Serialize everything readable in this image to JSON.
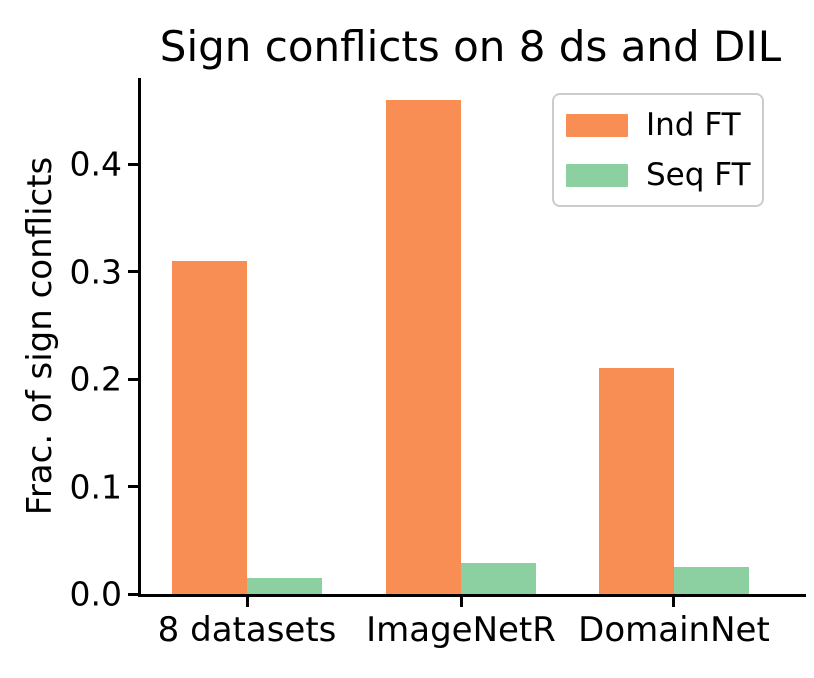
{
  "title": "Sign conflicts on 8 ds and DIL",
  "chart_data": {
    "type": "bar",
    "title": "Sign conflicts on 8 ds and DIL",
    "xlabel": "",
    "ylabel": "Frac. of sign conflicts",
    "categories": [
      "8 datasets",
      "ImageNetR",
      "DomainNet"
    ],
    "series": [
      {
        "name": "Ind FT",
        "color": "#f98e55",
        "values": [
          0.31,
          0.46,
          0.21
        ]
      },
      {
        "name": "Seq FT",
        "color": "#8cd0a2",
        "values": [
          0.015,
          0.029,
          0.025
        ]
      }
    ],
    "ylim": [
      0,
      0.48
    ],
    "yticks": [
      0.0,
      0.1,
      0.2,
      0.3,
      0.4
    ],
    "ytick_labels": [
      "0.0",
      "0.1",
      "0.2",
      "0.3",
      "0.4"
    ],
    "grid": false,
    "legend_position": "upper right",
    "layout": {
      "group_centers_frac": [
        0.1609,
        0.4856,
        0.8088
      ],
      "bar_width_frac": 0.1138
    }
  },
  "colors": {
    "ind_ft": "#f98e55",
    "seq_ft": "#8cd0a2",
    "axis": "#000000",
    "legend_border": "#cccccc",
    "background": "#ffffff"
  }
}
